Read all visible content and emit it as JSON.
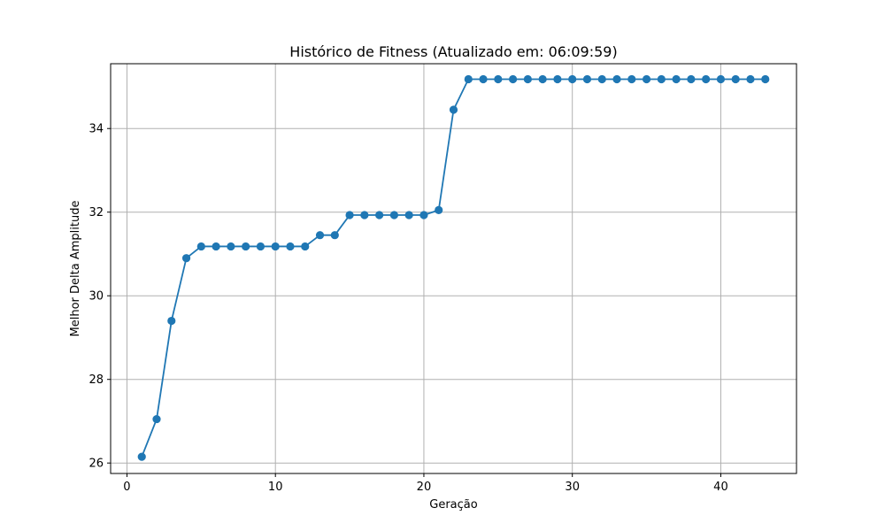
{
  "chart_data": {
    "type": "line",
    "title": "Histórico de Fitness (Atualizado em: 06:09:59)",
    "xlabel": "Geração",
    "ylabel": "Melhor Delta Amplitude",
    "xlim": [
      -1.1,
      45.1
    ],
    "ylim": [
      25.75,
      35.55
    ],
    "xticks": [
      0,
      10,
      20,
      30,
      40
    ],
    "yticks": [
      26,
      28,
      30,
      32,
      34
    ],
    "grid": true,
    "marker": "circle",
    "color": "#1f77b4",
    "x": [
      1,
      2,
      3,
      4,
      5,
      6,
      7,
      8,
      9,
      10,
      11,
      12,
      13,
      14,
      15,
      16,
      17,
      18,
      19,
      20,
      21,
      22,
      23,
      24,
      25,
      26,
      27,
      28,
      29,
      30,
      31,
      32,
      33,
      34,
      35,
      36,
      37,
      38,
      39,
      40,
      41,
      42,
      43
    ],
    "y": [
      26.15,
      27.05,
      29.4,
      30.9,
      31.18,
      31.18,
      31.18,
      31.18,
      31.18,
      31.18,
      31.18,
      31.18,
      31.45,
      31.45,
      31.93,
      31.93,
      31.93,
      31.93,
      31.93,
      31.93,
      32.05,
      34.45,
      35.18,
      35.18,
      35.18,
      35.18,
      35.18,
      35.18,
      35.18,
      35.18,
      35.18,
      35.18,
      35.18,
      35.18,
      35.18,
      35.18,
      35.18,
      35.18,
      35.18,
      35.18,
      35.18,
      35.18,
      35.18
    ]
  }
}
